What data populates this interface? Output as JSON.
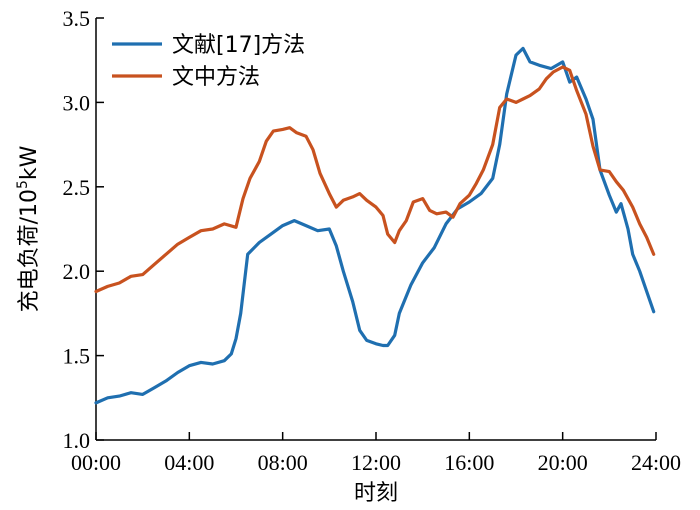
{
  "chart_data": {
    "type": "line",
    "xlabel": "时刻",
    "ylabel": "充电负荷/10⁵kW",
    "ylabel_parts": {
      "main": "充电负荷/10",
      "exp": "5",
      "unit": "kW"
    },
    "xlim": [
      0,
      24
    ],
    "ylim": [
      1.0,
      3.5
    ],
    "x_ticks": [
      0,
      4,
      8,
      12,
      16,
      20,
      24
    ],
    "x_tick_labels": [
      "00:00",
      "04:00",
      "08:00",
      "12:00",
      "16:00",
      "20:00",
      "24:00"
    ],
    "y_ticks": [
      1.0,
      1.5,
      2.0,
      2.5,
      3.0,
      3.5
    ],
    "y_tick_labels": [
      "1.0",
      "1.5",
      "2.0",
      "2.5",
      "3.0",
      "3.5"
    ],
    "grid": false,
    "legend_position": "top-left",
    "series": [
      {
        "name": "文献[17]方法",
        "color": "#1f6fb0",
        "x": [
          0,
          0.5,
          1,
          1.5,
          2,
          2.5,
          3,
          3.5,
          4,
          4.5,
          5,
          5.5,
          5.8,
          6,
          6.2,
          6.5,
          7,
          7.5,
          8,
          8.5,
          9,
          9.5,
          10,
          10.3,
          10.6,
          11,
          11.3,
          11.6,
          12,
          12.3,
          12.5,
          12.8,
          13,
          13.5,
          14,
          14.5,
          15,
          15.5,
          16,
          16.5,
          17,
          17.3,
          17.6,
          18,
          18.3,
          18.6,
          19,
          19.5,
          20,
          20.3,
          20.6,
          21,
          21.3,
          21.6,
          22,
          22.3,
          22.5,
          22.8,
          23,
          23.3,
          23.6,
          23.9
        ],
        "y": [
          1.22,
          1.25,
          1.26,
          1.28,
          1.27,
          1.31,
          1.35,
          1.4,
          1.44,
          1.46,
          1.45,
          1.47,
          1.51,
          1.6,
          1.75,
          2.1,
          2.17,
          2.22,
          2.27,
          2.3,
          2.27,
          2.24,
          2.25,
          2.15,
          2.0,
          1.82,
          1.65,
          1.59,
          1.57,
          1.56,
          1.56,
          1.62,
          1.75,
          1.92,
          2.05,
          2.14,
          2.28,
          2.37,
          2.41,
          2.46,
          2.55,
          2.75,
          3.05,
          3.28,
          3.32,
          3.24,
          3.22,
          3.2,
          3.24,
          3.12,
          3.15,
          3.02,
          2.9,
          2.6,
          2.45,
          2.35,
          2.4,
          2.25,
          2.1,
          2.0,
          1.88,
          1.76
        ]
      },
      {
        "name": "文中方法",
        "color": "#c8521f",
        "x": [
          0,
          0.5,
          1,
          1.5,
          2,
          2.5,
          3,
          3.5,
          4,
          4.5,
          5,
          5.5,
          6,
          6.3,
          6.6,
          7,
          7.3,
          7.6,
          8,
          8.3,
          8.6,
          9,
          9.3,
          9.6,
          10,
          10.3,
          10.6,
          11,
          11.3,
          11.6,
          12,
          12.3,
          12.5,
          12.8,
          13,
          13.3,
          13.6,
          14,
          14.3,
          14.6,
          15,
          15.3,
          15.6,
          16,
          16.3,
          16.6,
          17,
          17.3,
          17.6,
          18,
          18.3,
          18.6,
          19,
          19.3,
          19.6,
          20,
          20.3,
          20.6,
          21,
          21.3,
          21.6,
          22,
          22.3,
          22.6,
          23,
          23.3,
          23.6,
          23.9
        ],
        "y": [
          1.88,
          1.91,
          1.93,
          1.97,
          1.98,
          2.04,
          2.1,
          2.16,
          2.2,
          2.24,
          2.25,
          2.28,
          2.26,
          2.43,
          2.55,
          2.65,
          2.77,
          2.83,
          2.84,
          2.85,
          2.82,
          2.8,
          2.72,
          2.58,
          2.46,
          2.38,
          2.42,
          2.44,
          2.46,
          2.42,
          2.38,
          2.33,
          2.22,
          2.17,
          2.24,
          2.3,
          2.41,
          2.43,
          2.36,
          2.34,
          2.35,
          2.32,
          2.4,
          2.45,
          2.52,
          2.6,
          2.75,
          2.97,
          3.02,
          3.0,
          3.02,
          3.04,
          3.08,
          3.14,
          3.18,
          3.21,
          3.19,
          3.07,
          2.93,
          2.74,
          2.6,
          2.59,
          2.53,
          2.48,
          2.38,
          2.28,
          2.2,
          2.1
        ]
      }
    ]
  }
}
